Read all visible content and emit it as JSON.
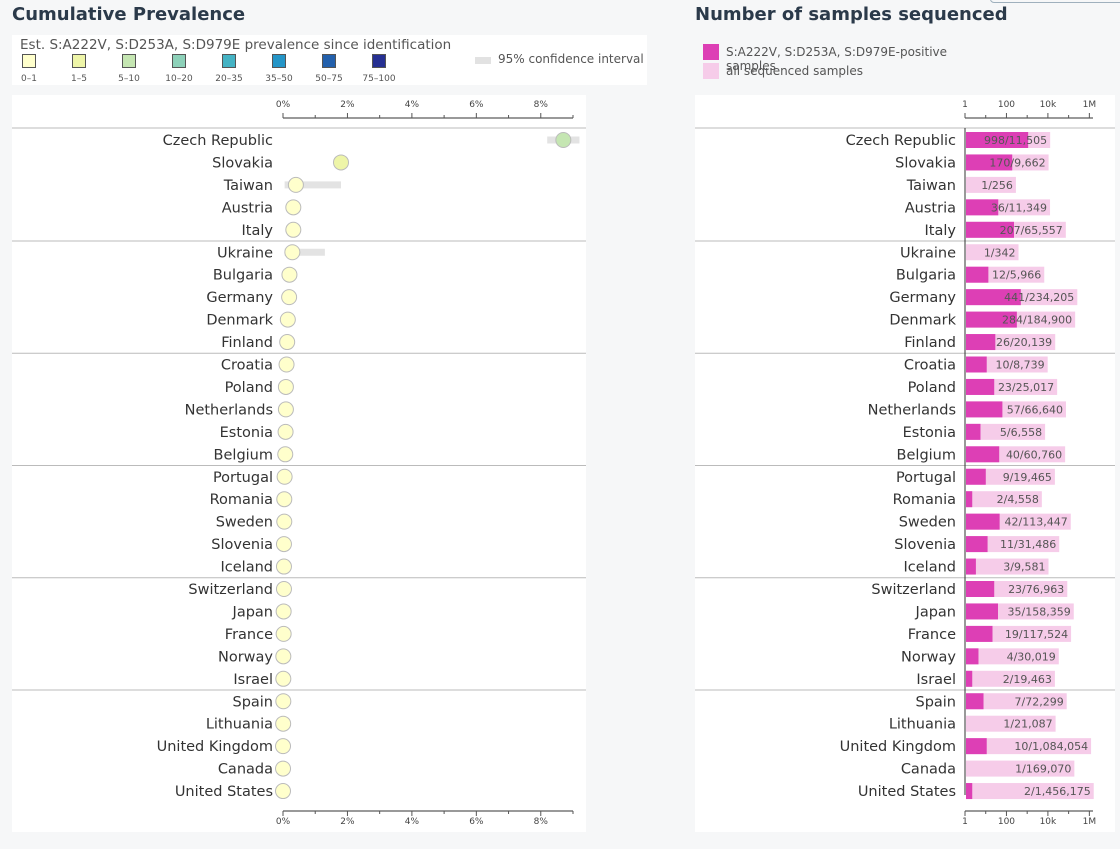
{
  "left_panel": {
    "title": "Cumulative Prevalence",
    "subtitle": "Est. S:A222V, S:D253A, S:D979E prevalence since identification",
    "color_legend": [
      {
        "label": "0–1",
        "color": "#ffffcc"
      },
      {
        "label": "1–5",
        "color": "#eef5a8"
      },
      {
        "label": "5–10",
        "color": "#c5e6b2"
      },
      {
        "label": "10–20",
        "color": "#8dd1b9"
      },
      {
        "label": "20–35",
        "color": "#45b3c4"
      },
      {
        "label": "35–50",
        "color": "#2495c7"
      },
      {
        "label": "50–75",
        "color": "#2360ac"
      },
      {
        "label": "75–100",
        "color": "#263092"
      }
    ],
    "ci_label": "95% confidence interval"
  },
  "right_panel": {
    "title": "Number of samples sequenced",
    "legend": [
      {
        "label": "S:A222V, S:D253A, S:D979E-positive samples",
        "color": "#dd3fb5"
      },
      {
        "label": "all sequenced samples",
        "color": "#f6cce9"
      }
    ]
  },
  "chart_data": [
    {
      "type": "scatter",
      "title": "Cumulative Prevalence",
      "xlim": [
        0,
        9
      ],
      "x_ticks": [
        "0%",
        "2%",
        "4%",
        "6%",
        "8%"
      ],
      "categories": [
        "Czech Republic",
        "Slovakia",
        "Taiwan",
        "Austria",
        "Italy",
        "Ukraine",
        "Bulgaria",
        "Germany",
        "Denmark",
        "Finland",
        "Croatia",
        "Poland",
        "Netherlands",
        "Estonia",
        "Belgium",
        "Portugal",
        "Romania",
        "Sweden",
        "Slovenia",
        "Iceland",
        "Switzerland",
        "Japan",
        "France",
        "Norway",
        "Israel",
        "Spain",
        "Lithuania",
        "United Kingdom",
        "Canada",
        "United States"
      ],
      "values": [
        8.7,
        1.8,
        0.4,
        0.32,
        0.32,
        0.29,
        0.2,
        0.19,
        0.15,
        0.13,
        0.11,
        0.09,
        0.09,
        0.08,
        0.07,
        0.05,
        0.04,
        0.04,
        0.03,
        0.03,
        0.03,
        0.02,
        0.02,
        0.01,
        0.01,
        0.01,
        0.005,
        0.001,
        0.001,
        0.0001
      ],
      "ci": [
        [
          8.2,
          9.2
        ],
        null,
        [
          0.05,
          1.8
        ],
        null,
        null,
        [
          0.05,
          1.3
        ],
        null,
        null,
        null,
        null,
        null,
        null,
        null,
        null,
        null,
        null,
        null,
        null,
        null,
        null,
        null,
        null,
        null,
        null,
        null,
        null,
        null,
        null,
        null,
        null
      ]
    },
    {
      "type": "bar",
      "title": "Number of samples sequenced",
      "x_scale": "log",
      "xlim": [
        1,
        1500000
      ],
      "x_ticks": [
        "1",
        "100",
        "10k",
        "1M"
      ],
      "categories": [
        "Czech Republic",
        "Slovakia",
        "Taiwan",
        "Austria",
        "Italy",
        "Ukraine",
        "Bulgaria",
        "Germany",
        "Denmark",
        "Finland",
        "Croatia",
        "Poland",
        "Netherlands",
        "Estonia",
        "Belgium",
        "Portugal",
        "Romania",
        "Sweden",
        "Slovenia",
        "Iceland",
        "Switzerland",
        "Japan",
        "France",
        "Norway",
        "Israel",
        "Spain",
        "Lithuania",
        "United Kingdom",
        "Canada",
        "United States"
      ],
      "series": [
        {
          "name": "S:A222V, S:D253A, S:D979E-positive samples",
          "values": [
            998,
            170,
            1,
            36,
            207,
            1,
            12,
            441,
            284,
            26,
            10,
            23,
            57,
            5,
            40,
            9,
            2,
            42,
            11,
            3,
            23,
            35,
            19,
            4,
            2,
            7,
            1,
            10,
            1,
            2
          ]
        },
        {
          "name": "all sequenced samples",
          "values": [
            11505,
            9662,
            256,
            11349,
            65557,
            342,
            5966,
            234205,
            184900,
            20139,
            8739,
            25017,
            66640,
            6558,
            60760,
            19465,
            4558,
            113447,
            31486,
            9581,
            76963,
            158359,
            117524,
            30019,
            19463,
            72299,
            21087,
            1084054,
            169070,
            1456175
          ]
        }
      ],
      "data_labels": [
        "998/11,505",
        "170/9,662",
        "1/256",
        "36/11,349",
        "207/65,557",
        "1/342",
        "12/5,966",
        "441/234,205",
        "284/184,900",
        "26/20,139",
        "10/8,739",
        "23/25,017",
        "57/66,640",
        "5/6,558",
        "40/60,760",
        "9/19,465",
        "2/4,558",
        "42/113,447",
        "11/31,486",
        "3/9,581",
        "23/76,963",
        "35/158,359",
        "19/117,524",
        "4/30,019",
        "2/19,463",
        "7/72,299",
        "1/21,087",
        "10/1,084,054",
        "1/169,070",
        "2/1,456,175"
      ]
    }
  ]
}
